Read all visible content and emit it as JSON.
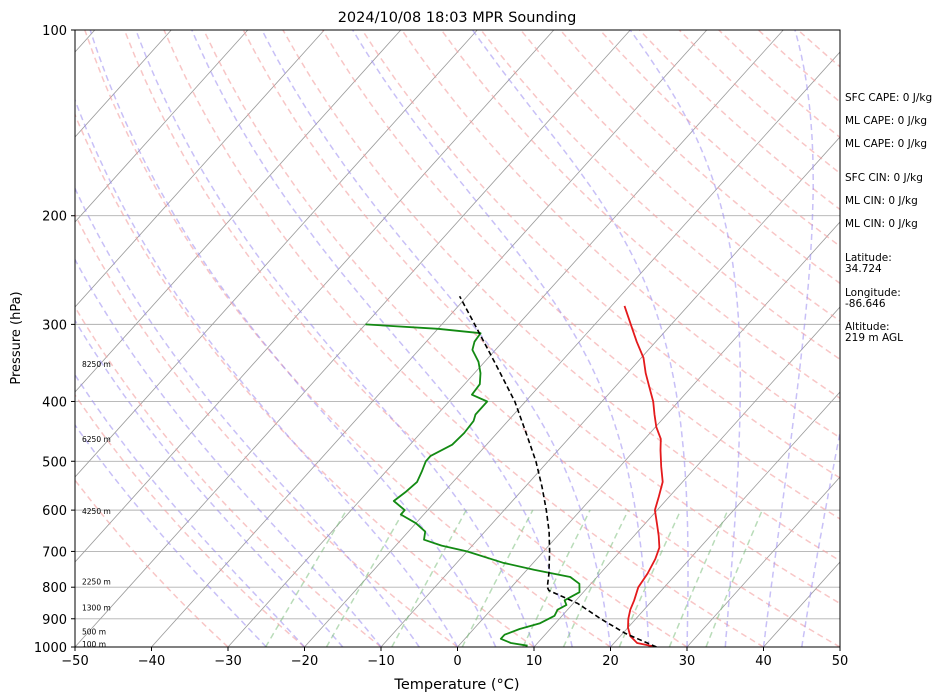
{
  "chart_data": {
    "type": "line",
    "title": "2024/10/08 18:03 MPR Sounding",
    "xlabel": "Temperature (°C)",
    "ylabel": "Pressure (hPa)",
    "xlim": [
      -50,
      50
    ],
    "ylim": [
      1000,
      100
    ],
    "y_scale": "log",
    "skew": true,
    "grid": true,
    "x_ticks": [
      -50,
      -40,
      -30,
      -20,
      -10,
      0,
      10,
      20,
      30,
      40,
      50
    ],
    "y_ticks": [
      100,
      200,
      300,
      400,
      500,
      600,
      700,
      800,
      900,
      1000
    ],
    "colors": {
      "temperature": "#e41a1c",
      "dewpoint": "#138a13",
      "parcel": "#000000",
      "dry_adiabat": "#f4a0a0",
      "moist_adiabat": "#9b8cf0",
      "mixing_ratio": "#7fbf7f",
      "isotherm": "#9a9a9a"
    },
    "series": [
      {
        "key": "temperature",
        "points": [
          [
            1000,
            26
          ],
          [
            985,
            23
          ],
          [
            960,
            21.3
          ],
          [
            930,
            20
          ],
          [
            900,
            19
          ],
          [
            870,
            18.2
          ],
          [
            840,
            17.6
          ],
          [
            800,
            16.6
          ],
          [
            760,
            16.2
          ],
          [
            720,
            15.5
          ],
          [
            690,
            14.7
          ],
          [
            660,
            13.2
          ],
          [
            630,
            11.5
          ],
          [
            600,
            9.7
          ],
          [
            570,
            8.6
          ],
          [
            540,
            7.4
          ],
          [
            510,
            5.4
          ],
          [
            480,
            3.4
          ],
          [
            460,
            2.1
          ],
          [
            440,
            0.1
          ],
          [
            420,
            -1.6
          ],
          [
            400,
            -3.3
          ],
          [
            380,
            -5.4
          ],
          [
            360,
            -7.6
          ],
          [
            340,
            -9.7
          ],
          [
            320,
            -12.5
          ],
          [
            300,
            -15.3
          ],
          [
            280,
            -18.3
          ]
        ]
      },
      {
        "key": "dewpoint",
        "points": [
          [
            995,
            9
          ],
          [
            985,
            6.5
          ],
          [
            970,
            4.7
          ],
          [
            955,
            4.7
          ],
          [
            935,
            6
          ],
          [
            915,
            8
          ],
          [
            890,
            9
          ],
          [
            870,
            8.7
          ],
          [
            855,
            9.3
          ],
          [
            840,
            8.5
          ],
          [
            815,
            9.5
          ],
          [
            790,
            8.5
          ],
          [
            770,
            6.5
          ],
          [
            750,
            1
          ],
          [
            730,
            -4
          ],
          [
            700,
            -10
          ],
          [
            685,
            -14
          ],
          [
            670,
            -17
          ],
          [
            650,
            -17.8
          ],
          [
            630,
            -20
          ],
          [
            610,
            -23
          ],
          [
            600,
            -23
          ],
          [
            580,
            -25.5
          ],
          [
            560,
            -25
          ],
          [
            540,
            -24.7
          ],
          [
            520,
            -25.3
          ],
          [
            500,
            -26
          ],
          [
            490,
            -26
          ],
          [
            470,
            -24.5
          ],
          [
            450,
            -24.3
          ],
          [
            430,
            -24.5
          ],
          [
            420,
            -25
          ],
          [
            400,
            -25
          ],
          [
            390,
            -27.8
          ],
          [
            375,
            -28
          ],
          [
            360,
            -29.2
          ],
          [
            345,
            -30.8
          ],
          [
            330,
            -33
          ],
          [
            320,
            -33.7
          ],
          [
            310,
            -33.9
          ],
          [
            305,
            -40
          ],
          [
            300,
            -50
          ]
        ]
      },
      {
        "key": "parcel",
        "points": [
          [
            1000,
            26
          ],
          [
            950,
            20.3
          ],
          [
            900,
            15.4
          ],
          [
            850,
            10.6
          ],
          [
            810,
            5.3
          ],
          [
            800,
            4.7
          ],
          [
            760,
            3.3
          ],
          [
            700,
            0.8
          ],
          [
            650,
            -1.6
          ],
          [
            600,
            -4.5
          ],
          [
            550,
            -7.8
          ],
          [
            500,
            -11.6
          ],
          [
            450,
            -16.2
          ],
          [
            400,
            -21.4
          ],
          [
            350,
            -28
          ],
          [
            300,
            -35.7
          ],
          [
            270,
            -41
          ]
        ]
      }
    ],
    "height_labels": [
      {
        "text": "100 m",
        "p": 988
      },
      {
        "text": "500 m",
        "p": 943
      },
      {
        "text": "1300 m",
        "p": 863
      },
      {
        "text": "2250 m",
        "p": 783
      },
      {
        "text": "4250 m",
        "p": 602
      },
      {
        "text": "6250 m",
        "p": 460
      },
      {
        "text": "8250 m",
        "p": 348
      }
    ],
    "annotations": [
      "SFC CAPE: 0 J/kg",
      "ML CAPE: 0 J/kg",
      "ML CAPE: 0 J/kg",
      "SFC CIN: 0 J/kg",
      "ML CIN: 0 J/kg",
      "ML CIN: 0 J/kg",
      "Latitude:\n34.724",
      "Longitude:\n-86.646",
      "Altitude:\n219 m AGL"
    ]
  }
}
